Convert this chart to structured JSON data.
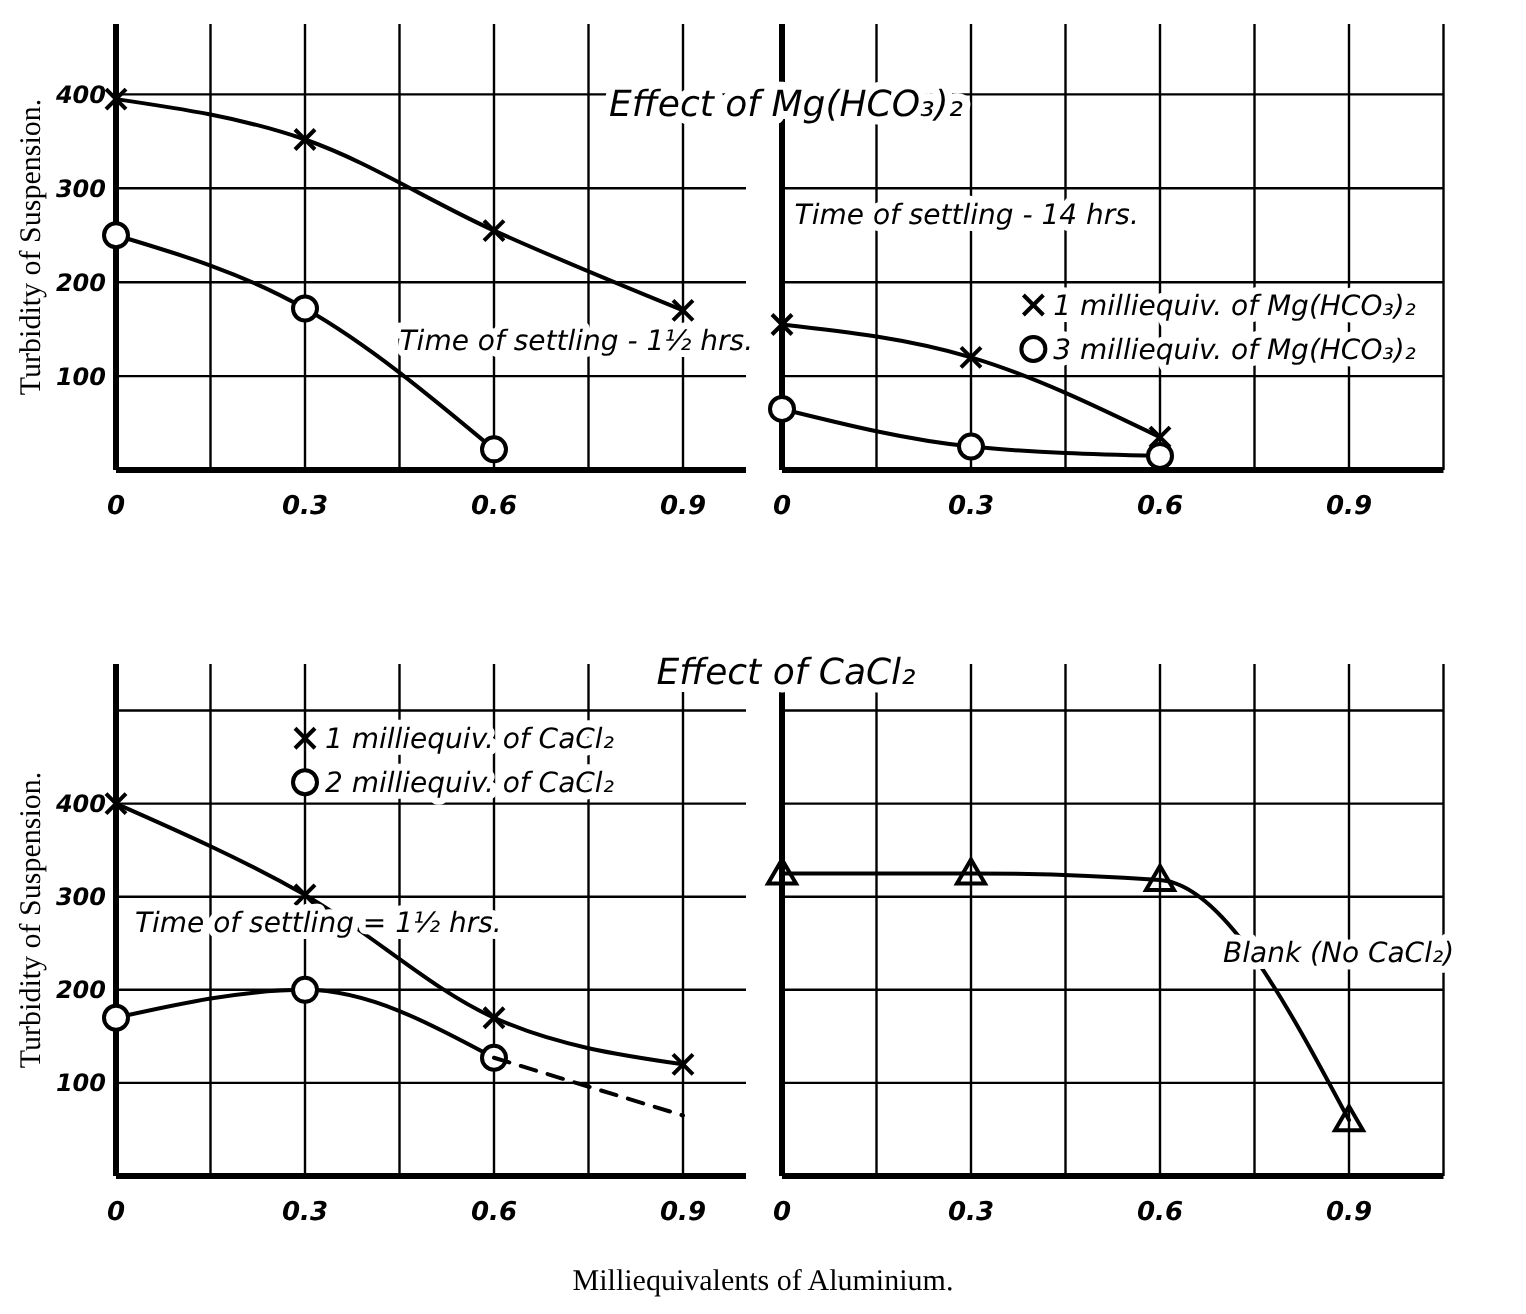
{
  "chart_data": [
    {
      "type": "line",
      "title": "Effect of Mg(HCO₃)₂",
      "ylabel": "Turbidity of Suspension.",
      "annotations": [
        "Time of settling - 1½ hrs."
      ],
      "x": [
        0,
        0.3,
        0.6,
        0.9
      ],
      "xlim": [
        0,
        1.0
      ],
      "xticks": [
        0,
        {
          "value": 0.15,
          "label": null
        },
        0.3,
        {
          "value": 0.45,
          "label": null
        },
        0.6,
        {
          "value": 0.75,
          "label": null
        },
        0.9
      ],
      "ylim": [
        0,
        475
      ],
      "yticks": [
        100,
        200,
        300,
        400
      ],
      "grid": true,
      "legend": false,
      "line_style": "solid",
      "series": [
        {
          "color": "#000000",
          "marker": "cross",
          "values": [
            395,
            352,
            255,
            170
          ]
        },
        {
          "color": "#000000",
          "marker": "circle",
          "x": [
            0,
            0.3,
            0.6
          ],
          "values": [
            250,
            172,
            22
          ]
        }
      ]
    },
    {
      "type": "line",
      "annotations": [
        "Time of settling - 14 hrs."
      ],
      "x": [
        0,
        0.3,
        0.6
      ],
      "xlim": [
        0,
        1.05
      ],
      "xticks": [
        0,
        {
          "value": 0.15,
          "label": null
        },
        0.3,
        {
          "value": 0.45,
          "label": null
        },
        0.6,
        {
          "value": 0.75,
          "label": null
        },
        0.9,
        {
          "value": 1.05,
          "label": null
        }
      ],
      "ylim": [
        0,
        475
      ],
      "yticks": [
        100,
        200,
        300,
        400
      ],
      "tick_labels": "x",
      "grid": true,
      "legend": "right",
      "line_style": "solid",
      "series": [
        {
          "name": "1 milliequiv. of Mg(HCO₃)₂",
          "color": "#000000",
          "marker": "cross",
          "values": [
            155,
            120,
            35
          ]
        },
        {
          "name": "3 milliequiv. of Mg(HCO₃)₂",
          "color": "#000000",
          "marker": "circle",
          "values": [
            65,
            25,
            15
          ]
        }
      ]
    },
    {
      "type": "line",
      "title": "Effect of CaCl₂",
      "ylabel": "Turbidity of Suspension.",
      "xlabel": "Milliequivalents of Aluminium.",
      "annotations": [
        "Time of settling = 1½ hrs."
      ],
      "x": [
        0,
        0.3,
        0.6,
        0.9
      ],
      "xlim": [
        0,
        1.0
      ],
      "xticks": [
        0,
        {
          "value": 0.15,
          "label": null
        },
        0.3,
        {
          "value": 0.45,
          "label": null
        },
        0.6,
        {
          "value": 0.75,
          "label": null
        },
        0.9
      ],
      "ylim": [
        0,
        550
      ],
      "yticks": [
        100,
        200,
        300,
        400,
        {
          "value": 500,
          "label": null
        }
      ],
      "grid": true,
      "legend": "top",
      "line_style": "solid",
      "series": [
        {
          "name": "1 milliequiv. of CaCl₂",
          "color": "#000000",
          "marker": "cross",
          "values": [
            400,
            302,
            170,
            120
          ]
        },
        {
          "name": "2 milliequiv. of CaCl₂",
          "color": "#000000",
          "marker": "circle",
          "x": [
            0,
            0.3,
            0.6
          ],
          "values": [
            170,
            200,
            127
          ]
        },
        {
          "color": "#000000",
          "marker": "none",
          "line_style": "dashed",
          "x": [
            0.6,
            0.9
          ],
          "values": [
            127,
            65
          ]
        }
      ]
    },
    {
      "type": "line",
      "annotations": [
        "Blank (No CaCl₂)"
      ],
      "x": [
        0,
        0.3,
        0.6,
        0.9
      ],
      "xlim": [
        0,
        1.05
      ],
      "xticks": [
        0,
        {
          "value": 0.15,
          "label": null
        },
        0.3,
        {
          "value": 0.45,
          "label": null
        },
        0.6,
        {
          "value": 0.75,
          "label": null
        },
        0.9,
        {
          "value": 1.05,
          "label": null
        }
      ],
      "ylim": [
        0,
        550
      ],
      "yticks": [
        100,
        200,
        300,
        400,
        {
          "value": 500,
          "label": null
        }
      ],
      "tick_labels": "x",
      "grid": true,
      "legend": false,
      "line_style": "solid",
      "series": [
        {
          "color": "#000000",
          "marker": "triangle",
          "values": [
            325,
            325,
            318,
            60
          ]
        }
      ]
    }
  ]
}
